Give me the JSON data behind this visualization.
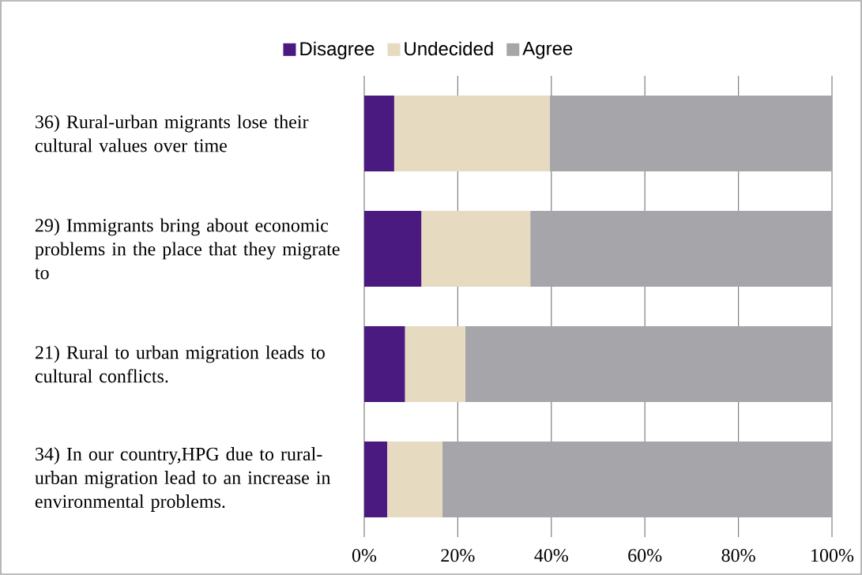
{
  "chart_data": {
    "type": "bar",
    "orientation": "horizontal",
    "stacked": true,
    "categories": [
      "36) Rural-urban migrants lose their cultural values over time",
      "29) Immigrants bring about economic problems in the place that they migrate to",
      "21) Rural to urban migration leads to cultural conflicts.",
      "34) In our country,HPG due to rural-urban migration lead to an increase in environmental problems."
    ],
    "series": [
      {
        "name": "Disagree",
        "color": "#4a1a80",
        "values": [
          6.4,
          12.2,
          8.7,
          4.9
        ]
      },
      {
        "name": "Undecided",
        "color": "#e6dac0",
        "values": [
          33.3,
          23.3,
          12.9,
          11.8
        ]
      },
      {
        "name": "Agree",
        "color": "#a6a6aa",
        "values": [
          60.3,
          64.5,
          78.4,
          83.3
        ]
      }
    ],
    "xlim": [
      0,
      100
    ],
    "xticks": [
      {
        "value": 0,
        "label": "0%"
      },
      {
        "value": 20,
        "label": "20%"
      },
      {
        "value": 40,
        "label": "40%"
      },
      {
        "value": 60,
        "label": "60%"
      },
      {
        "value": 80,
        "label": "80%"
      },
      {
        "value": 100,
        "label": "100%"
      }
    ],
    "grid": "x",
    "legend": "top"
  }
}
